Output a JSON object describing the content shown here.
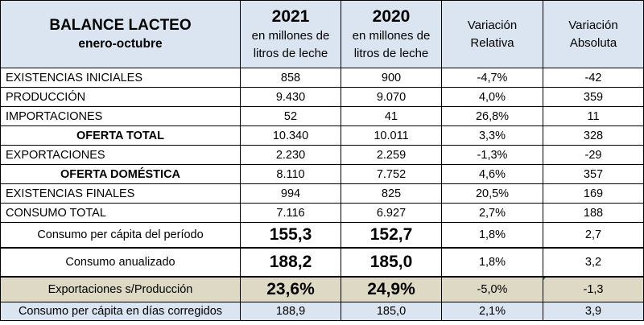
{
  "header": {
    "title": "BALANCE LACTEO",
    "subtitle": "enero-octubre",
    "col2021_year": "2021",
    "col2021_unit_line1": "en millones de",
    "col2021_unit_line2": "litros de leche",
    "col2020_year": "2020",
    "col2020_unit_line1": "en millones de",
    "col2020_unit_line2": "litros de leche",
    "var_rel_line1": "Variación",
    "var_rel_line2": "Relativa",
    "var_abs_line1": "Variación",
    "var_abs_line2": "Absoluta"
  },
  "rows": [
    {
      "label": "EXISTENCIAS  INICIALES",
      "y2021": "858",
      "y2020": "900",
      "rel": "-4,7%",
      "abs": "-42"
    },
    {
      "label": "PRODUCCIÓN",
      "y2021": "9.430",
      "y2020": "9.070",
      "rel": "4,0%",
      "abs": "359"
    },
    {
      "label": "IMPORTACIONES",
      "y2021": "52",
      "y2020": "41",
      "rel": "26,8%",
      "abs": "11"
    },
    {
      "label": "OFERTA TOTAL",
      "y2021": "10.340",
      "y2020": "10.011",
      "rel": "3,3%",
      "abs": "328"
    },
    {
      "label": "EXPORTACIONES",
      "y2021": "2.230",
      "y2020": "2.259",
      "rel": "-1,3%",
      "abs": "-29"
    },
    {
      "label": "OFERTA DOMÉSTICA",
      "y2021": "8.110",
      "y2020": "7.752",
      "rel": "4,6%",
      "abs": "357"
    },
    {
      "label": "EXISTENCIAS FINALES",
      "y2021": "994",
      "y2020": "825",
      "rel": "20,5%",
      "abs": "169"
    },
    {
      "label": "CONSUMO TOTAL",
      "y2021": "7.116",
      "y2020": "6.927",
      "rel": "2,7%",
      "abs": "188"
    },
    {
      "label": "Consumo per cápita del período",
      "y2021": "155,3",
      "y2020": "152,7",
      "rel": "1,8%",
      "abs": "2,7"
    },
    {
      "label": "Consumo anualizado",
      "y2021": "188,2",
      "y2020": "185,0",
      "rel": "1,8%",
      "abs": "3,2"
    },
    {
      "label": "Exportaciones s/Producción",
      "y2021": "23,6%",
      "y2020": "24,9%",
      "rel": "-5,0%",
      "abs": "-1,3"
    },
    {
      "label": "Consumo per cápita en días corregidos",
      "y2021": "188,9",
      "y2020": "185,0",
      "rel": "2,1%",
      "abs": "3,9"
    }
  ],
  "colors": {
    "header_bg": "#dbe5f1",
    "highlight_bg": "#ddd9c4",
    "marker": "#1e7f3a"
  }
}
